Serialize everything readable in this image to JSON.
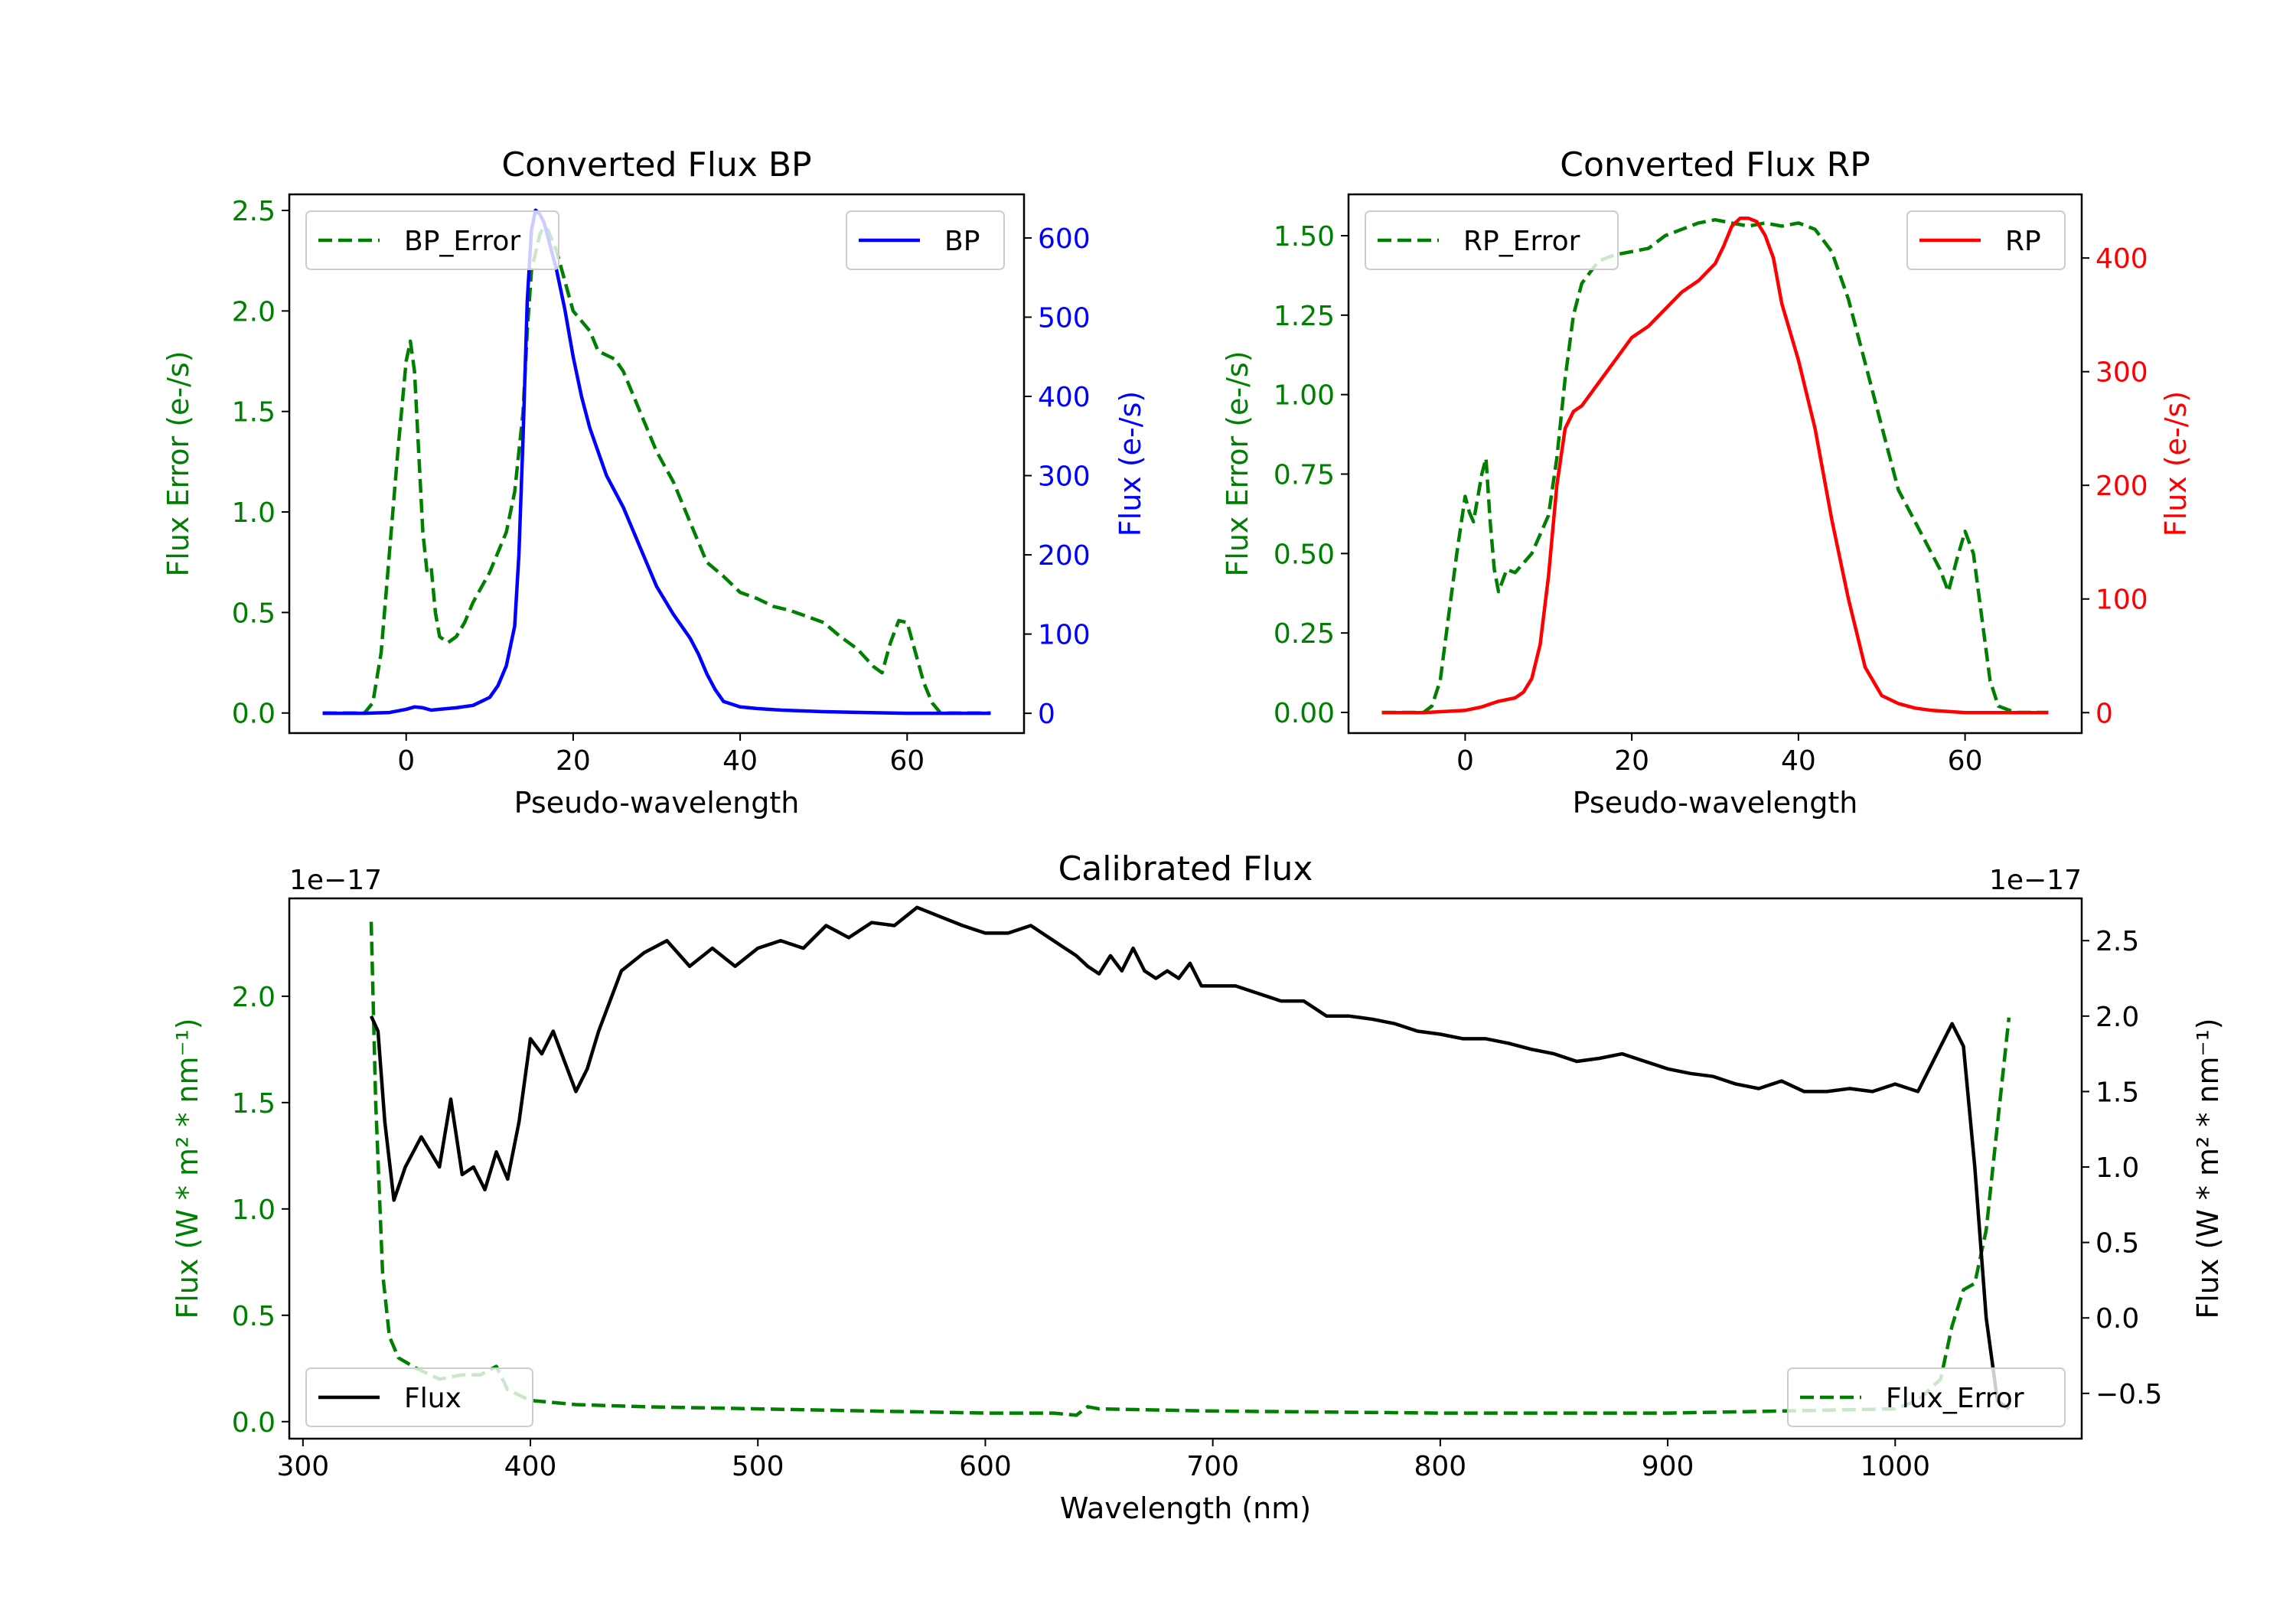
{
  "chart_data": [
    {
      "type": "line",
      "title": "Converted Flux BP",
      "xlabel": "Pseudo-wavelength",
      "ylabel_left": "Flux Error (e-/s)",
      "ylabel_right": "Flux (e-/s)",
      "xlim": [
        -14,
        74
      ],
      "ylim_left": [
        -0.1,
        2.58
      ],
      "ylim_right": [
        -25,
        655
      ],
      "xticks": [
        0,
        20,
        40,
        60
      ],
      "yticks_left": [
        0.0,
        0.5,
        1.0,
        1.5,
        2.0,
        2.5
      ],
      "yticks_right": [
        0,
        100,
        200,
        300,
        400,
        500,
        600
      ],
      "colors": {
        "left": "#008000",
        "right": "#0000ff"
      },
      "series": [
        {
          "name": "BP_Error",
          "axis": "left",
          "style": "dashed",
          "color": "#008000",
          "legend": "top-left",
          "x": [
            -10,
            -5,
            -4,
            -3,
            -2,
            -1,
            0,
            0.5,
            1,
            2,
            2.5,
            3,
            3.5,
            4,
            5,
            6,
            7,
            8,
            10,
            12,
            13,
            14,
            14.5,
            15,
            16,
            16.5,
            17,
            18,
            19,
            20,
            22,
            23,
            24,
            25,
            26,
            27,
            28,
            29,
            30,
            32,
            34,
            36,
            38,
            40,
            42,
            44,
            46,
            48,
            50,
            52,
            54,
            56,
            57,
            58,
            59,
            60,
            61,
            62,
            63,
            64,
            66,
            70
          ],
          "y": [
            0,
            0,
            0.05,
            0.3,
            0.8,
            1.3,
            1.75,
            1.85,
            1.7,
            0.9,
            0.7,
            0.72,
            0.5,
            0.38,
            0.35,
            0.38,
            0.45,
            0.55,
            0.7,
            0.9,
            1.1,
            1.5,
            1.9,
            2.2,
            2.38,
            2.42,
            2.4,
            2.3,
            2.15,
            2.0,
            1.9,
            1.8,
            1.78,
            1.76,
            1.7,
            1.6,
            1.5,
            1.4,
            1.3,
            1.15,
            0.95,
            0.75,
            0.68,
            0.6,
            0.57,
            0.53,
            0.51,
            0.48,
            0.45,
            0.38,
            0.32,
            0.23,
            0.2,
            0.35,
            0.46,
            0.45,
            0.3,
            0.15,
            0.05,
            0,
            0,
            0
          ]
        },
        {
          "name": "BP",
          "axis": "right",
          "style": "solid",
          "color": "#0000ff",
          "legend": "top-right",
          "x": [
            -10,
            -5,
            -2,
            0,
            1,
            2,
            3,
            4,
            6,
            8,
            10,
            11,
            12,
            13,
            13.5,
            14,
            14.5,
            15,
            15.5,
            16,
            16.5,
            17,
            18,
            19,
            20,
            21,
            22,
            23,
            24,
            26,
            28,
            30,
            32,
            34,
            35,
            36,
            37,
            38,
            40,
            42,
            45,
            50,
            55,
            60,
            65,
            70
          ],
          "y": [
            0,
            0,
            1,
            5,
            8,
            7,
            4,
            5,
            7,
            10,
            20,
            35,
            60,
            110,
            200,
            350,
            520,
            610,
            635,
            630,
            620,
            600,
            560,
            510,
            450,
            400,
            360,
            330,
            300,
            260,
            210,
            160,
            125,
            95,
            75,
            50,
            30,
            15,
            8,
            6,
            4,
            2,
            1,
            0,
            0,
            0
          ]
        }
      ]
    },
    {
      "type": "line",
      "title": "Converted Flux RP",
      "xlabel": "Pseudo-wavelength",
      "ylabel_left": "Flux Error (e-/s)",
      "ylabel_right": "Flux (e-/s)",
      "xlim": [
        -14,
        74
      ],
      "ylim_left": [
        -0.065,
        1.63
      ],
      "ylim_right": [
        -18,
        456
      ],
      "xticks": [
        0,
        20,
        40,
        60
      ],
      "yticks_left": [
        0.0,
        0.25,
        0.5,
        0.75,
        1.0,
        1.25,
        1.5
      ],
      "yticks_right": [
        0,
        100,
        200,
        300,
        400
      ],
      "colors": {
        "left": "#008000",
        "right": "#ff0000"
      },
      "series": [
        {
          "name": "RP_Error",
          "axis": "left",
          "style": "dashed",
          "color": "#008000",
          "legend": "top-left",
          "x": [
            -10,
            -5,
            -4,
            -3,
            -2,
            -1,
            0,
            0.5,
            1,
            2,
            2.5,
            3,
            3.5,
            4,
            5,
            6,
            8,
            10,
            11,
            12,
            13,
            14,
            16,
            18,
            20,
            22,
            24,
            26,
            28,
            30,
            32,
            34,
            36,
            38,
            40,
            42,
            44,
            46,
            48,
            50,
            52,
            54,
            56,
            57,
            58,
            59,
            60,
            61,
            62,
            63,
            64,
            66,
            70
          ],
          "y": [
            0,
            0,
            0.02,
            0.1,
            0.3,
            0.5,
            0.68,
            0.63,
            0.6,
            0.75,
            0.8,
            0.6,
            0.45,
            0.38,
            0.45,
            0.44,
            0.5,
            0.62,
            0.8,
            1.05,
            1.25,
            1.35,
            1.42,
            1.44,
            1.45,
            1.46,
            1.5,
            1.52,
            1.54,
            1.55,
            1.54,
            1.53,
            1.54,
            1.53,
            1.54,
            1.52,
            1.45,
            1.3,
            1.1,
            0.9,
            0.7,
            0.6,
            0.5,
            0.45,
            0.38,
            0.48,
            0.57,
            0.5,
            0.3,
            0.1,
            0.02,
            0,
            0
          ]
        },
        {
          "name": "RP",
          "axis": "right",
          "style": "solid",
          "color": "#ff0000",
          "legend": "top-right",
          "x": [
            -10,
            -5,
            0,
            2,
            4,
            6,
            7,
            8,
            9,
            10,
            11,
            12,
            13,
            14,
            15,
            16,
            18,
            20,
            22,
            24,
            26,
            28,
            30,
            31,
            32,
            33,
            34,
            35,
            36,
            37,
            38,
            40,
            42,
            44,
            46,
            48,
            50,
            52,
            54,
            56,
            58,
            60,
            62,
            65,
            70
          ],
          "y": [
            0,
            0,
            2,
            5,
            10,
            13,
            18,
            30,
            60,
            120,
            200,
            250,
            265,
            270,
            280,
            290,
            310,
            330,
            340,
            355,
            370,
            380,
            395,
            410,
            428,
            435,
            435,
            432,
            420,
            400,
            360,
            310,
            250,
            170,
            100,
            40,
            15,
            8,
            4,
            2,
            1,
            0,
            0,
            0,
            0
          ]
        }
      ]
    },
    {
      "type": "line",
      "title": "Calibrated Flux",
      "xlabel": "Wavelength (nm)",
      "ylabel_left": "Flux (W * m² * nm⁻¹)",
      "ylabel_right": "Flux (W * m² * nm⁻¹)",
      "offset_left": "1e−17",
      "offset_right": "1e−17",
      "xlim": [
        294,
        1082
      ],
      "ylim_left": [
        -0.08,
        2.46
      ],
      "ylim_right": [
        -0.8,
        2.78
      ],
      "xticks": [
        300,
        400,
        500,
        600,
        700,
        800,
        900,
        1000
      ],
      "yticks_left": [
        0.0,
        0.5,
        1.0,
        1.5,
        2.0
      ],
      "yticks_right": [
        -0.5,
        0.0,
        0.5,
        1.0,
        1.5,
        2.0,
        2.5
      ],
      "yticks_right_labels": [
        "−0.5",
        "0.0",
        "0.5",
        "1.0",
        "1.5",
        "2.0",
        "2.5"
      ],
      "colors": {
        "left": "#008000",
        "right": "#000000"
      },
      "series": [
        {
          "name": "Flux_Error",
          "axis": "left",
          "style": "dashed",
          "color": "#008000",
          "legend": "bottom-right",
          "x": [
            330,
            332,
            335,
            338,
            342,
            350,
            360,
            370,
            378,
            385,
            390,
            400,
            420,
            450,
            500,
            550,
            600,
            630,
            640,
            645,
            650,
            700,
            800,
            900,
            950,
            1000,
            1010,
            1020,
            1025,
            1030,
            1035,
            1040,
            1045,
            1050
          ],
          "y": [
            2.35,
            1.5,
            0.7,
            0.4,
            0.3,
            0.25,
            0.2,
            0.22,
            0.22,
            0.26,
            0.15,
            0.1,
            0.08,
            0.07,
            0.06,
            0.05,
            0.04,
            0.04,
            0.03,
            0.07,
            0.06,
            0.05,
            0.04,
            0.04,
            0.05,
            0.06,
            0.1,
            0.2,
            0.45,
            0.62,
            0.65,
            0.9,
            1.4,
            1.9
          ]
        },
        {
          "name": "Flux",
          "axis": "right",
          "style": "solid",
          "color": "#000000",
          "legend": "bottom-left",
          "x": [
            330,
            333,
            336,
            340,
            345,
            352,
            360,
            365,
            370,
            375,
            380,
            385,
            390,
            395,
            400,
            405,
            410,
            415,
            420,
            425,
            430,
            440,
            450,
            460,
            470,
            480,
            490,
            500,
            510,
            520,
            530,
            540,
            550,
            560,
            570,
            580,
            590,
            600,
            610,
            620,
            630,
            640,
            645,
            650,
            655,
            660,
            665,
            670,
            675,
            680,
            685,
            690,
            695,
            700,
            710,
            720,
            730,
            740,
            750,
            760,
            770,
            780,
            790,
            800,
            810,
            820,
            830,
            840,
            850,
            860,
            870,
            880,
            890,
            900,
            910,
            920,
            930,
            940,
            950,
            960,
            970,
            980,
            990,
            1000,
            1010,
            1020,
            1025,
            1030,
            1035,
            1040,
            1045,
            1050
          ],
          "y": [
            2.0,
            1.9,
            1.3,
            0.78,
            1.0,
            1.2,
            1.0,
            1.45,
            0.95,
            1.0,
            0.85,
            1.1,
            0.92,
            1.3,
            1.85,
            1.75,
            1.9,
            1.7,
            1.5,
            1.65,
            1.9,
            2.3,
            2.42,
            2.5,
            2.33,
            2.45,
            2.33,
            2.45,
            2.5,
            2.45,
            2.6,
            2.52,
            2.62,
            2.6,
            2.72,
            2.66,
            2.6,
            2.55,
            2.55,
            2.6,
            2.5,
            2.4,
            2.33,
            2.28,
            2.4,
            2.3,
            2.45,
            2.3,
            2.25,
            2.3,
            2.25,
            2.35,
            2.2,
            2.2,
            2.2,
            2.15,
            2.1,
            2.1,
            2.0,
            2.0,
            1.98,
            1.95,
            1.9,
            1.88,
            1.85,
            1.85,
            1.82,
            1.78,
            1.75,
            1.7,
            1.72,
            1.75,
            1.7,
            1.65,
            1.62,
            1.6,
            1.55,
            1.52,
            1.57,
            1.5,
            1.5,
            1.52,
            1.5,
            1.55,
            1.5,
            1.8,
            1.95,
            1.8,
            1.0,
            0.0,
            -0.55,
            -0.6
          ]
        }
      ]
    }
  ]
}
